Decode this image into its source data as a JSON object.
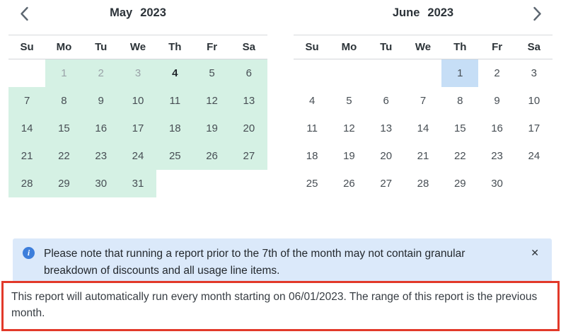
{
  "colors": {
    "range_bg": "#d5f1e4",
    "selected_bg": "#c6def6",
    "banner_bg": "#dbe9fa",
    "info_icon_bg": "#3d7edb",
    "alert_border": "#e2392a"
  },
  "calendars": [
    {
      "month": "May",
      "year": "2023",
      "weekdays": [
        "Su",
        "Mo",
        "Tu",
        "We",
        "Th",
        "Fr",
        "Sa"
      ],
      "weeks": [
        [
          null,
          1,
          2,
          3,
          4,
          5,
          6
        ],
        [
          7,
          8,
          9,
          10,
          11,
          12,
          13
        ],
        [
          14,
          15,
          16,
          17,
          18,
          19,
          20
        ],
        [
          21,
          22,
          23,
          24,
          25,
          26,
          27
        ],
        [
          28,
          29,
          30,
          31,
          null,
          null,
          null
        ]
      ],
      "all_in_range": true,
      "muted_days": [
        1,
        2,
        3
      ],
      "today_day": 4
    },
    {
      "month": "June",
      "year": "2023",
      "weekdays": [
        "Su",
        "Mo",
        "Tu",
        "We",
        "Th",
        "Fr",
        "Sa"
      ],
      "weeks": [
        [
          null,
          null,
          null,
          null,
          1,
          2,
          3
        ],
        [
          4,
          5,
          6,
          7,
          8,
          9,
          10
        ],
        [
          11,
          12,
          13,
          14,
          15,
          16,
          17
        ],
        [
          18,
          19,
          20,
          21,
          22,
          23,
          24
        ],
        [
          25,
          26,
          27,
          28,
          29,
          30,
          null
        ]
      ],
      "selected_day": 1
    }
  ],
  "banner": {
    "info_icon_glyph": "i",
    "text": "Please note that running a report prior to the 7th of the month may not contain granular breakdown of discounts and all usage line items.",
    "close_glyph": "✕"
  },
  "schedule_note": {
    "text": "This report will automatically run every month starting on 06/01/2023. The range of this report is the previous month."
  }
}
